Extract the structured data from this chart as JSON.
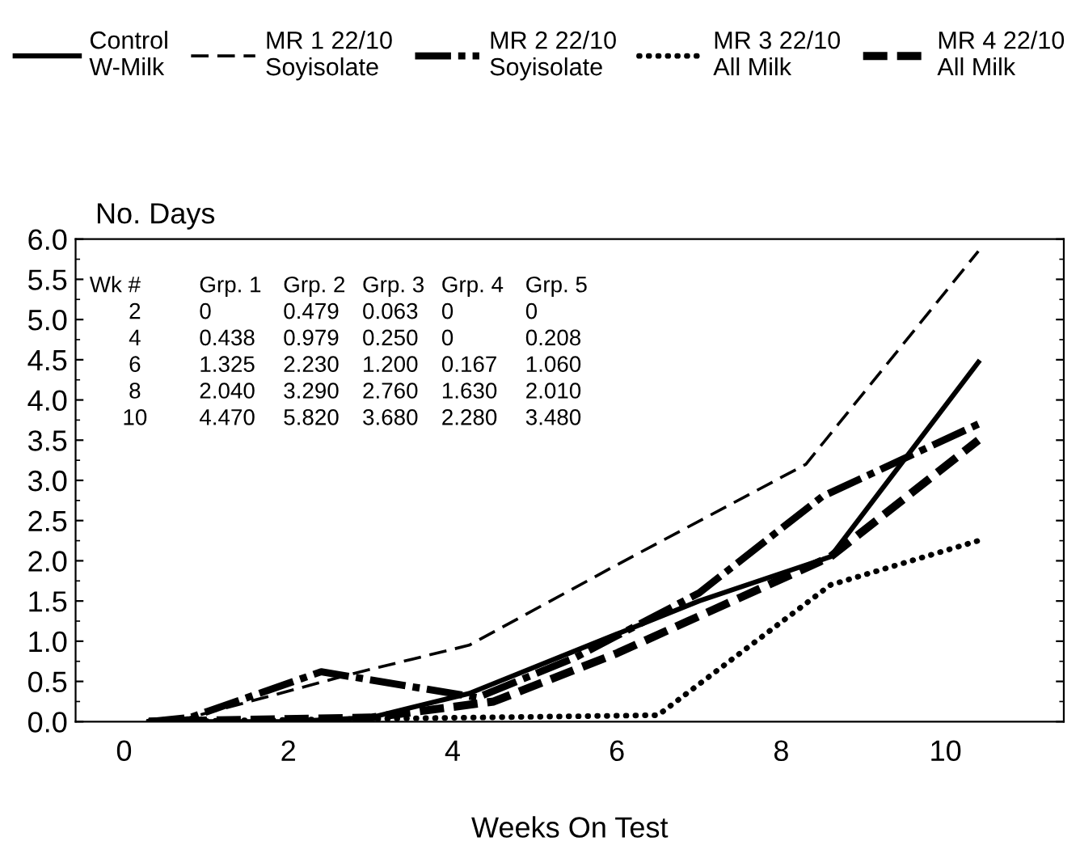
{
  "chart_data": {
    "type": "line",
    "ylabel": "No. Days",
    "xlabel": "Weeks On Test",
    "xlim": [
      -0.59,
      11.44
    ],
    "xticks": [
      0,
      2,
      4,
      6,
      8,
      10
    ],
    "ylim": [
      0,
      6
    ],
    "yticks": [
      {
        "value": 0.0,
        "label": "0.0"
      },
      {
        "value": 0.5,
        "label": "0.5"
      },
      {
        "value": 1.0,
        "label": "1.0"
      },
      {
        "value": 1.5,
        "label": "1.5"
      },
      {
        "value": 2.0,
        "label": "2.0"
      },
      {
        "value": 2.5,
        "label": "2.5"
      },
      {
        "value": 3.0,
        "label": "3.0"
      },
      {
        "value": 3.5,
        "label": "3.5"
      },
      {
        "value": 4.0,
        "label": "4.0"
      },
      {
        "value": 4.5,
        "label": "4.5"
      },
      {
        "value": 5.0,
        "label": "5.0"
      },
      {
        "value": 5.5,
        "label": "5.5"
      },
      {
        "value": 6.0,
        "label": "6.0"
      }
    ],
    "grid": false,
    "legend": "top",
    "marker": "none",
    "series": [
      {
        "name": "Control\nW-Milk",
        "color": "#000000",
        "line_style": "solid",
        "x": [
          0.3,
          2,
          3,
          4.2,
          7,
          8.6,
          10.4
        ],
        "values": [
          0,
          0,
          0.05,
          0.35,
          1.5,
          2.05,
          4.47
        ]
      },
      {
        "name": "MR 1 22/10\nSoyisolate",
        "color": "#000000",
        "line_style": "dashed",
        "x": [
          0.3,
          0.8,
          2.8,
          4.2,
          6,
          8.3,
          10.4
        ],
        "values": [
          0,
          0.05,
          0.6,
          0.95,
          1.95,
          3.2,
          5.85
        ]
      },
      {
        "name": "MR 2 22/10\nSoyisolate",
        "color": "#000000",
        "line_style": "dashdot",
        "x": [
          0.3,
          0.8,
          2.4,
          4.3,
          5.5,
          7,
          8.5,
          10.4
        ],
        "values": [
          0,
          0.05,
          0.62,
          0.3,
          0.8,
          1.6,
          2.8,
          3.7
        ]
      },
      {
        "name": "MR 3 22/10\nAll Milk",
        "color": "#000000",
        "line_style": "dotted",
        "x": [
          0.3,
          6.5,
          8.6,
          10.4
        ],
        "values": [
          0,
          0.08,
          1.7,
          2.25
        ]
      },
      {
        "name": "MR 4 22/10\nAll Milk",
        "color": "#000000",
        "line_style": "dashed",
        "x": [
          0.3,
          3,
          4.5,
          6,
          8.6,
          10.4
        ],
        "values": [
          0,
          0.05,
          0.25,
          0.85,
          2.05,
          3.5
        ]
      }
    ],
    "annotations": [
      "Wk #  Grp. 1  Grp. 2  Grp. 3  Grp. 4  Grp. 5",
      "2  0  0.479  0.063  0  0",
      "4  0.438  0.979  0.250  0  0.208",
      "6  1.325  2.230  1.200  0.167  1.060",
      "8  2.040  3.290  2.760  1.630  2.010",
      "10  4.470  5.820  3.680  2.280  3.480"
    ]
  }
}
